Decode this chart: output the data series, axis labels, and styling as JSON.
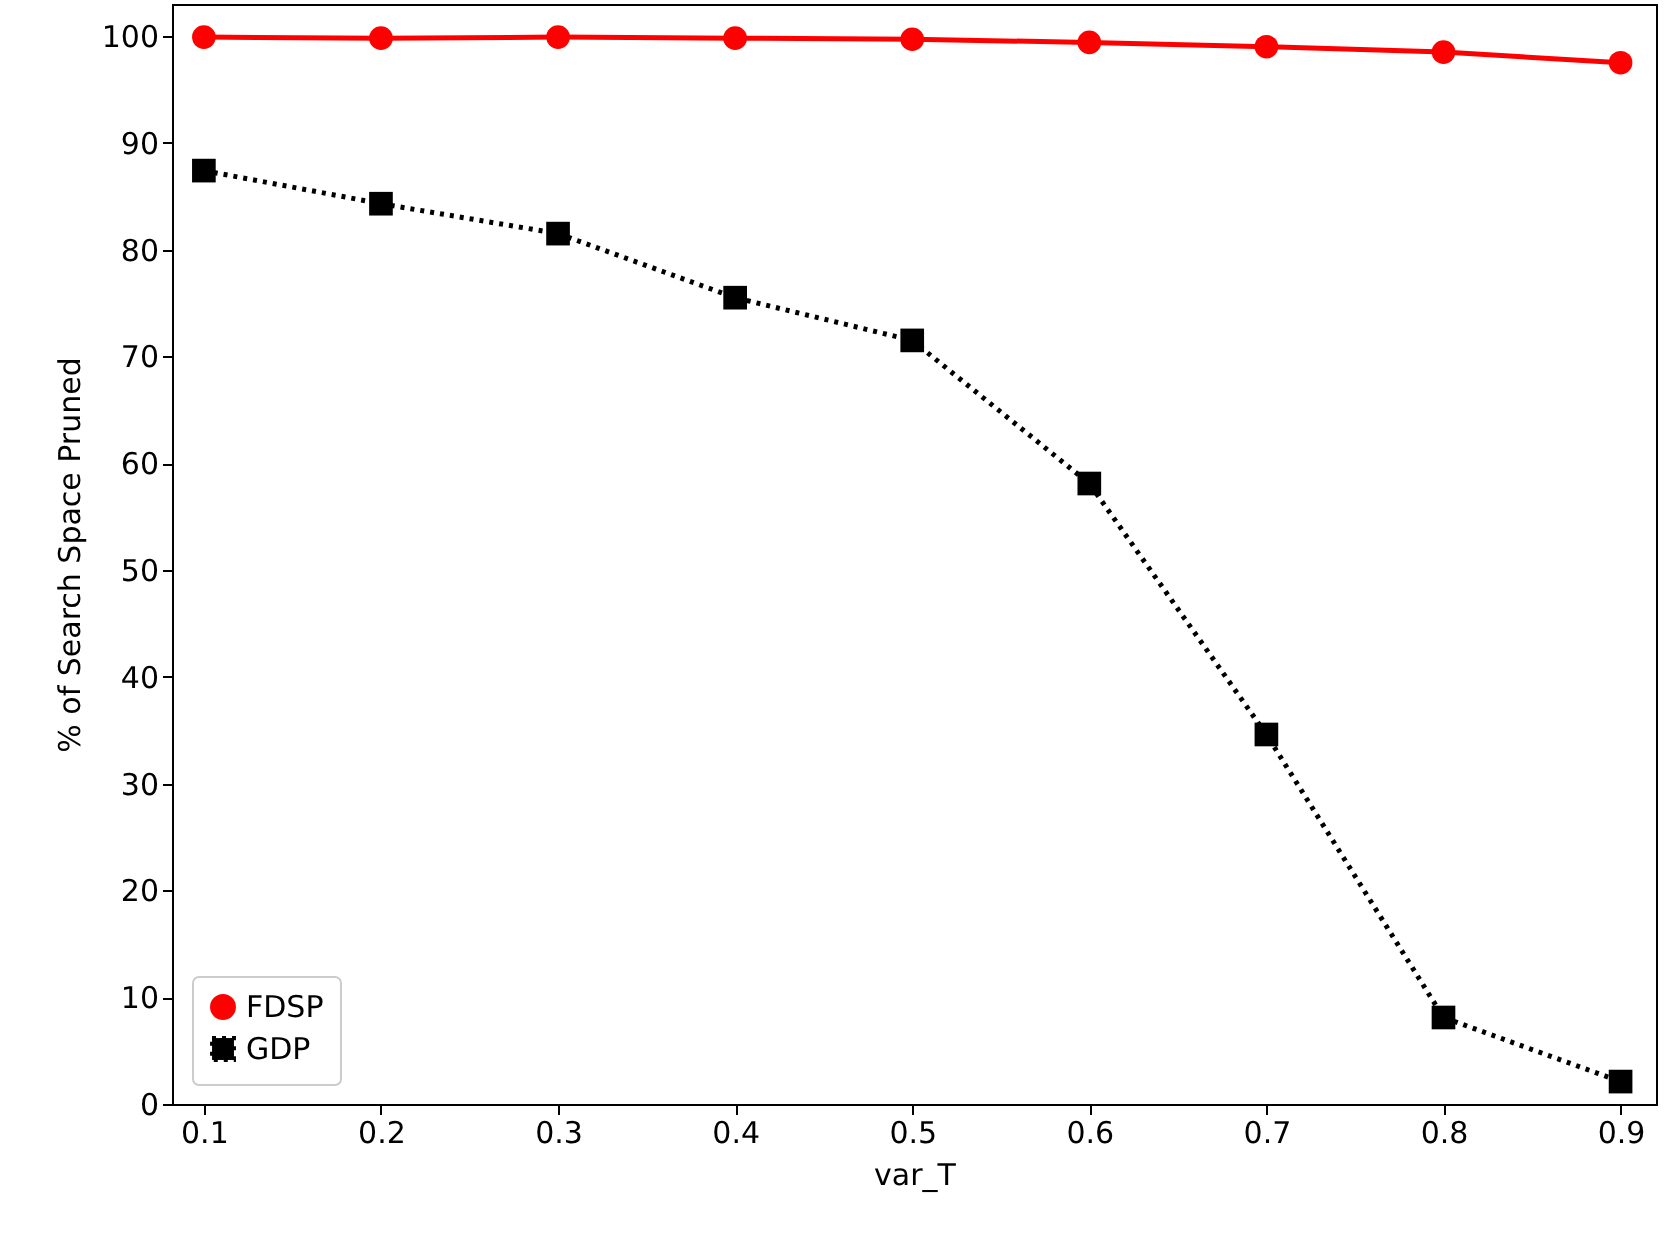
{
  "chart_data": {
    "type": "line",
    "xlabel": "var_T",
    "ylabel": "% of Search Space Pruned",
    "x": [
      0.1,
      0.2,
      0.3,
      0.4,
      0.5,
      0.6,
      0.7,
      0.8,
      0.9
    ],
    "series": [
      {
        "name": "FDSP",
        "color": "#ff0000",
        "marker": "circle",
        "line_style": "solid",
        "values": [
          99.9,
          99.8,
          99.9,
          99.8,
          99.7,
          99.4,
          99.0,
          98.5,
          97.5
        ]
      },
      {
        "name": "GDP",
        "color": "#000000",
        "marker": "square",
        "line_style": "dotted",
        "values": [
          87.4,
          84.3,
          81.5,
          75.5,
          71.5,
          58.1,
          34.6,
          8.1,
          2.1
        ]
      }
    ],
    "xlim": [
      0.082,
      0.92
    ],
    "xticks": [
      0.1,
      0.2,
      0.3,
      0.4,
      0.5,
      0.6,
      0.7,
      0.8,
      0.9
    ],
    "ylim": [
      0,
      103
    ],
    "yticks": [
      0,
      10,
      20,
      30,
      40,
      50,
      60,
      70,
      80,
      90,
      100
    ],
    "grid": false,
    "legend": "bottom left"
  }
}
